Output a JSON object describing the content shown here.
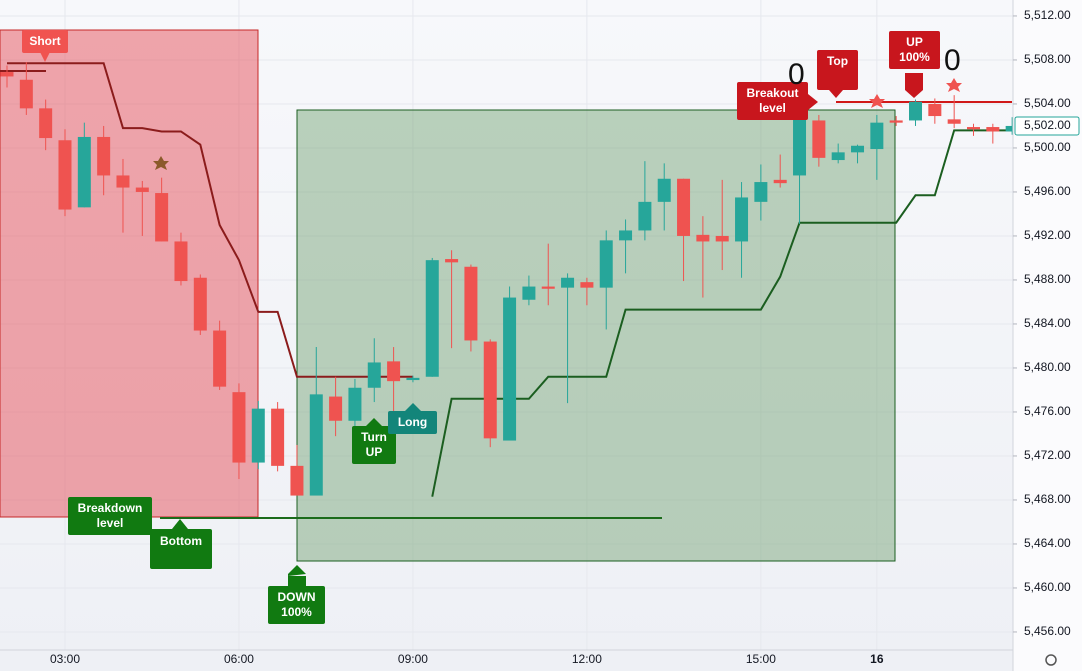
{
  "chart_data": {
    "type": "candlestick",
    "categories": [
      null,
      null,
      null,
      "03:00",
      null,
      null,
      null,
      null,
      null,
      null,
      null,
      null,
      "06:00",
      null,
      null,
      null,
      null,
      null,
      null,
      null,
      null,
      "09:00",
      null,
      null,
      null,
      null,
      null,
      null,
      null,
      null,
      "12:00",
      null,
      null,
      null,
      null,
      null,
      null,
      null,
      null,
      "15:00",
      null,
      null,
      null,
      null,
      null,
      "16",
      null,
      null,
      null,
      null,
      null,
      null,
      null
    ],
    "ohlc": {
      "open": [
        5506.9,
        5506.2,
        5503.6,
        5500.7,
        5494.6,
        5501.0,
        5497.5,
        5496.4,
        5495.9,
        5491.5,
        5488.2,
        5483.4,
        5477.8,
        5471.4,
        5476.3,
        5471.1,
        5468.4,
        5477.4,
        5475.2,
        5478.2,
        5480.6,
        5478.9,
        5479.2,
        5489.9,
        5489.2,
        5482.4,
        5473.4,
        5486.2,
        5487.4,
        5487.3,
        5487.8,
        5487.3,
        5491.6,
        5492.5,
        5495.1,
        5497.2,
        5492.1,
        5492.0,
        5491.5,
        5495.1,
        5497.1,
        5497.5,
        5502.5,
        5498.9,
        5499.6,
        5499.9,
        5502.5,
        5502.5,
        5504.0,
        5502.6,
        5501.9,
        5501.9,
        5501.5
      ],
      "high": [
        5507.5,
        5507.8,
        5504.4,
        5501.7,
        5502.3,
        5502.0,
        5499.0,
        5497.0,
        5497.3,
        5492.3,
        5488.5,
        5484.3,
        5478.6,
        5477.0,
        5476.9,
        5473.0,
        5481.9,
        5479.2,
        5479.0,
        5482.7,
        5481.9,
        5479.3,
        5490.0,
        5490.7,
        5489.4,
        5482.6,
        5487.4,
        5488.4,
        5491.3,
        5488.6,
        5488.2,
        5492.5,
        5493.5,
        5498.8,
        5498.6,
        5497.2,
        5493.8,
        5497.1,
        5496.9,
        5498.5,
        5499.4,
        5504.6,
        5503.0,
        5500.4,
        5500.3,
        5503.0,
        5502.9,
        5504.4,
        5504.5,
        5504.8,
        5502.2,
        5502.2,
        5502.8
      ],
      "low": [
        5505.5,
        5503.0,
        5499.8,
        5493.8,
        5494.6,
        5495.7,
        5492.3,
        5492.0,
        5491.5,
        5487.5,
        5483.0,
        5478.0,
        5469.9,
        5470.8,
        5470.6,
        5468.4,
        5468.4,
        5473.8,
        5474.7,
        5476.9,
        5476.0,
        5478.7,
        5479.2,
        5481.8,
        5481.5,
        5472.8,
        5473.4,
        5485.7,
        5485.7,
        5476.8,
        5485.7,
        5483.5,
        5488.6,
        5491.6,
        5492.5,
        5487.9,
        5486.4,
        5488.9,
        5488.2,
        5493.4,
        5496.4,
        5493.1,
        5498.3,
        5498.6,
        5498.6,
        5497.1,
        5502.0,
        5502.0,
        5502.2,
        5501.8,
        5501.1,
        5500.4,
        5501.2
      ],
      "close": [
        5506.5,
        5503.6,
        5500.9,
        5494.4,
        5501.0,
        5497.5,
        5496.4,
        5496.0,
        5491.5,
        5487.9,
        5483.4,
        5478.3,
        5471.4,
        5476.3,
        5471.1,
        5468.4,
        5477.6,
        5475.2,
        5478.2,
        5480.5,
        5478.8,
        5479.1,
        5489.8,
        5489.6,
        5482.5,
        5473.6,
        5486.4,
        5487.4,
        5487.2,
        5488.2,
        5487.3,
        5491.6,
        5492.5,
        5495.1,
        5497.2,
        5492.0,
        5491.5,
        5491.5,
        5495.5,
        5496.9,
        5496.8,
        5503.5,
        5499.1,
        5499.6,
        5500.2,
        5502.3,
        5502.3,
        5504.2,
        5502.9,
        5502.2,
        5501.7,
        5501.5,
        5502.0
      ]
    },
    "up_color": "#26a69a",
    "down_color": "#ef5350",
    "lines": [
      {
        "color": "#8b1c1c",
        "values": [
          5507.7,
          5507.7,
          5507.7,
          5507.7,
          5507.7,
          5507.7,
          5501.8,
          5501.8,
          5501.5,
          5501.5,
          5500.3,
          5493.0,
          5489.8,
          5485.1,
          5485.1,
          5479.2,
          5479.2,
          5479.2,
          5479.2,
          5479.2,
          5479.2,
          5479.2,
          null,
          null,
          null,
          null,
          null,
          null,
          null,
          null,
          null,
          null,
          null,
          null,
          null,
          null,
          null,
          null,
          null,
          null,
          null,
          null,
          null,
          null,
          null,
          null,
          null,
          null,
          null,
          null,
          null,
          null,
          null
        ]
      },
      {
        "color": "#1b5e20",
        "values": [
          null,
          null,
          null,
          null,
          null,
          null,
          null,
          null,
          null,
          null,
          null,
          null,
          null,
          null,
          null,
          null,
          null,
          null,
          null,
          null,
          null,
          null,
          5468.3,
          5477.2,
          5477.2,
          5477.2,
          5477.2,
          5477.2,
          5479.2,
          5479.2,
          5479.2,
          5479.2,
          5485.3,
          5485.3,
          5485.3,
          5485.3,
          5485.3,
          5485.3,
          5485.3,
          5485.3,
          5488.3,
          5493.2,
          5493.2,
          5493.2,
          5493.2,
          5493.2,
          5493.2,
          5495.7,
          5495.7,
          5501.6,
          5501.6,
          5501.6,
          5501.6
        ]
      }
    ],
    "ylim": [
      5454.36,
      5513.45
    ],
    "yticks": [
      {
        "value": 5456,
        "label": "5,456.00"
      },
      {
        "value": 5460,
        "label": "5,460.00"
      },
      {
        "value": 5464,
        "label": "5,464.00"
      },
      {
        "value": 5468,
        "label": "5,468.00"
      },
      {
        "value": 5472,
        "label": "5,472.00"
      },
      {
        "value": 5476,
        "label": "5,476.00"
      },
      {
        "value": 5480,
        "label": "5,480.00"
      },
      {
        "value": 5484,
        "label": "5,484.00"
      },
      {
        "value": 5488,
        "label": "5,488.00"
      },
      {
        "value": 5492,
        "label": "5,492.00"
      },
      {
        "value": 5496,
        "label": "5,496.00"
      },
      {
        "value": 5500,
        "label": "5,500.00"
      },
      {
        "value": 5504,
        "label": "5,504.00"
      },
      {
        "value": 5508,
        "label": "5,508.00"
      },
      {
        "value": 5512,
        "label": "5,512.00"
      }
    ],
    "last_price": {
      "value": 5502,
      "label": "5,502.00"
    },
    "grid": true,
    "annotations": [
      "Short",
      "Breakdown level",
      "Bottom",
      "DOWN 100%",
      "Turn UP",
      "Long",
      "Breakout level",
      "Top",
      "UP 100%",
      "0",
      "0"
    ]
  }
}
